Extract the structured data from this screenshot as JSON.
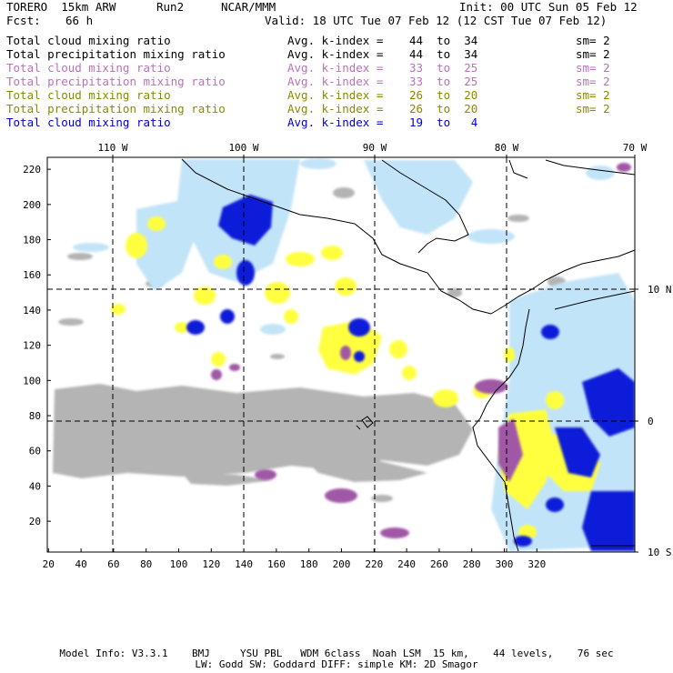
{
  "header": {
    "model": "TORERO  15km ARW",
    "run": "Run2",
    "org": "NCAR/MMM",
    "init": "Init: 00 UTC Sun 05 Feb 12",
    "fcst_label": "Fcst:",
    "fcst_value": "66 h",
    "valid": "Valid: 18 UTC Tue 07 Feb 12 (12 CST Tue 07 Feb 12)"
  },
  "fields": [
    {
      "name": "Total cloud mixing ratio",
      "avg": "Avg. k-index =",
      "range": "44  to  34",
      "sm": "sm= 2",
      "color": "#000000"
    },
    {
      "name": "Total precipitation mixing ratio",
      "avg": "Avg. k-index =",
      "range": "44  to  34",
      "sm": "sm= 2",
      "color": "#000000"
    },
    {
      "name": "Total cloud mixing ratio",
      "avg": "Avg. k-index =",
      "range": "33  to  25",
      "sm": "sm= 2",
      "color": "#b873b8"
    },
    {
      "name": "Total precipitation mixing ratio",
      "avg": "Avg. k-index =",
      "range": "33  to  25",
      "sm": "sm= 2",
      "color": "#b873b8"
    },
    {
      "name": "Total cloud mixing ratio",
      "avg": "Avg. k-index =",
      "range": "26  to  20",
      "sm": "sm= 2",
      "color": "#8a8a00"
    },
    {
      "name": "Total precipitation mixing ratio",
      "avg": "Avg. k-index =",
      "range": "26  to  20",
      "sm": "sm= 2",
      "color": "#8a8a00"
    },
    {
      "name": "Total cloud mixing ratio",
      "avg": "Avg. k-index =",
      "range": "19  to   4",
      "sm": "",
      "color": "#0000cc"
    }
  ],
  "map": {
    "lon_labels": [
      "110 W",
      "100 W",
      "90 W",
      "80 W",
      "70 W"
    ],
    "lat_labels": [
      "10 N",
      "0",
      "10 S"
    ],
    "x_ticks": [
      "20",
      "40",
      "60",
      "80",
      "100",
      "120",
      "140",
      "160",
      "180",
      "200",
      "220",
      "240",
      "260",
      "280",
      "300",
      "320"
    ],
    "y_ticks": [
      "220",
      "200",
      "180",
      "160",
      "140",
      "120",
      "100",
      "80",
      "60",
      "40",
      "20"
    ],
    "colors": {
      "gray": "#b4b4b4",
      "magenta": "#a058a6",
      "yellow": "#ffff40",
      "blue": "#0a1ed8",
      "lightblue": "#c2e4f8"
    }
  },
  "footer": {
    "line1": "Model Info: V3.3.1    BMJ     YSU PBL   WDM 6class  Noah LSM  15 km,    44 levels,    76 sec",
    "line2": "LW: Godd SW: Goddard DIFF: simple KM: 2D Smagor"
  }
}
